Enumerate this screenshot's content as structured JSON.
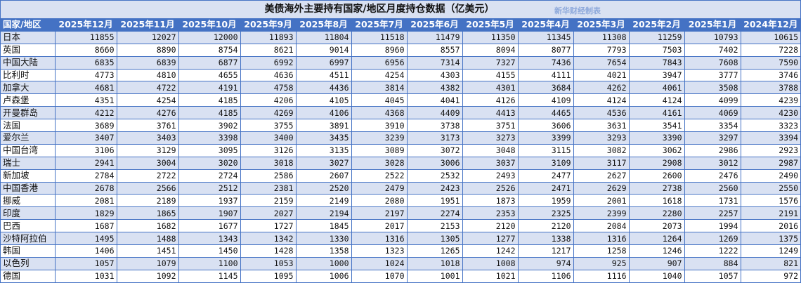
{
  "title": "美债海外主要持有国家/地区月度持仓数据（亿美元）",
  "watermark": "新华财经制表",
  "colors": {
    "header_bg": "#4472C4",
    "alt_row_bg": "#D9E1F2",
    "border": "#4472C4",
    "watermark": "#8EA9DB"
  },
  "table": {
    "headers": [
      "国家/地区",
      "2025年12月",
      "2025年11月",
      "2025年10月",
      "2025年9月",
      "2025年8月",
      "2025年7月",
      "2025年6月",
      "2025年5月",
      "2025年4月",
      "2025年3月",
      "2025年2月",
      "2025年1月",
      "2024年12月"
    ],
    "rows": [
      [
        "日本",
        "11855",
        "12027",
        "12000",
        "11893",
        "11804",
        "11518",
        "11479",
        "11350",
        "11345",
        "11308",
        "11259",
        "10793",
        "10615"
      ],
      [
        "英国",
        "8660",
        "8890",
        "8754",
        "8621",
        "9014",
        "8960",
        "8557",
        "8094",
        "8077",
        "7793",
        "7503",
        "7402",
        "7228"
      ],
      [
        "中国大陆",
        "6835",
        "6839",
        "6877",
        "6992",
        "6997",
        "6956",
        "7314",
        "7327",
        "7436",
        "7654",
        "7843",
        "7608",
        "7590"
      ],
      [
        "比利时",
        "4773",
        "4810",
        "4655",
        "4636",
        "4511",
        "4254",
        "4303",
        "4155",
        "4111",
        "4021",
        "3947",
        "3777",
        "3746"
      ],
      [
        "加拿大",
        "4681",
        "4722",
        "4191",
        "4758",
        "4436",
        "3814",
        "4382",
        "4301",
        "3684",
        "4262",
        "4061",
        "3508",
        "3788"
      ],
      [
        "卢森堡",
        "4351",
        "4254",
        "4185",
        "4206",
        "4105",
        "4045",
        "4041",
        "4126",
        "4109",
        "4124",
        "4124",
        "4099",
        "4239"
      ],
      [
        "开曼群岛",
        "4212",
        "4276",
        "4185",
        "4269",
        "4106",
        "4368",
        "4409",
        "4413",
        "4465",
        "4536",
        "4161",
        "4069",
        "4230"
      ],
      [
        "法国",
        "3689",
        "3761",
        "3902",
        "3755",
        "3891",
        "3910",
        "3738",
        "3751",
        "3606",
        "3631",
        "3541",
        "3354",
        "3323"
      ],
      [
        "爱尔兰",
        "3407",
        "3403",
        "3398",
        "3400",
        "3435",
        "3239",
        "3173",
        "3273",
        "3399",
        "3293",
        "3390",
        "3297",
        "3394"
      ],
      [
        "中国台湾",
        "3106",
        "3129",
        "3095",
        "3126",
        "3135",
        "3089",
        "3072",
        "3048",
        "3115",
        "3082",
        "3062",
        "2986",
        "2923"
      ],
      [
        "瑞士",
        "2941",
        "3004",
        "3020",
        "3018",
        "3027",
        "3028",
        "3006",
        "3037",
        "3109",
        "3117",
        "2908",
        "3012",
        "2987"
      ],
      [
        "新加坡",
        "2784",
        "2722",
        "2724",
        "2586",
        "2607",
        "2522",
        "2532",
        "2493",
        "2477",
        "2627",
        "2600",
        "2476",
        "2490"
      ],
      [
        "中国香港",
        "2678",
        "2566",
        "2512",
        "2381",
        "2520",
        "2479",
        "2423",
        "2526",
        "2471",
        "2629",
        "2738",
        "2560",
        "2550"
      ],
      [
        "挪威",
        "2081",
        "2189",
        "1937",
        "2159",
        "2149",
        "2080",
        "1951",
        "1873",
        "1959",
        "2001",
        "1618",
        "1731",
        "1576"
      ],
      [
        "印度",
        "1829",
        "1865",
        "1907",
        "2027",
        "2194",
        "2197",
        "2274",
        "2353",
        "2325",
        "2399",
        "2280",
        "2257",
        "2191"
      ],
      [
        "巴西",
        "1687",
        "1682",
        "1677",
        "1727",
        "1845",
        "2017",
        "2153",
        "2120",
        "2120",
        "2084",
        "2073",
        "1994",
        "2016"
      ],
      [
        "沙特阿拉伯",
        "1495",
        "1488",
        "1343",
        "1342",
        "1330",
        "1316",
        "1305",
        "1277",
        "1338",
        "1316",
        "1264",
        "1269",
        "1375"
      ],
      [
        "韩国",
        "1406",
        "1451",
        "1450",
        "1428",
        "1358",
        "1323",
        "1265",
        "1242",
        "1217",
        "1258",
        "1246",
        "1222",
        "1249"
      ],
      [
        "以色列",
        "1057",
        "1079",
        "1100",
        "1053",
        "1000",
        "1024",
        "1018",
        "1008",
        "974",
        "925",
        "907",
        "884",
        "821"
      ],
      [
        "德国",
        "1031",
        "1092",
        "1145",
        "1095",
        "1006",
        "1070",
        "1001",
        "1021",
        "1106",
        "1116",
        "1040",
        "1057",
        "972"
      ]
    ]
  }
}
